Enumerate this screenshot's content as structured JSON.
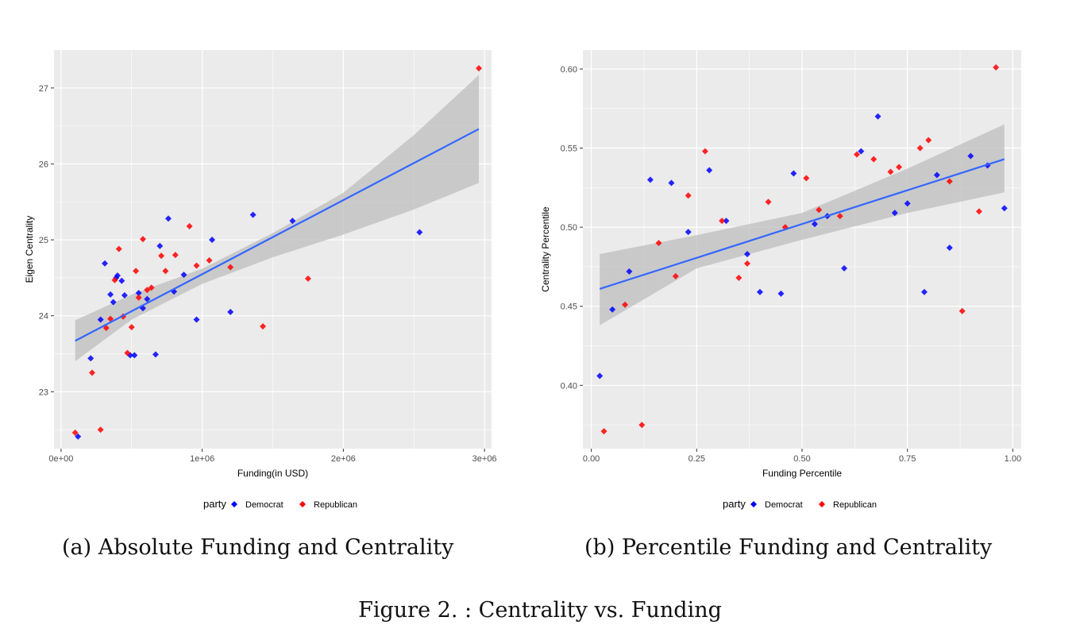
{
  "figure_caption": "Figure 2. : Centrality vs. Funding",
  "colors": {
    "panel_bg": "#ebebeb",
    "grid": "#ffffff",
    "democrat": "#0000ff",
    "republican": "#ff0000",
    "fit_line": "#3366ff",
    "ribbon": "#bdbdbd"
  },
  "chart_data": [
    {
      "id": "a",
      "type": "scatter",
      "caption": "(a) Absolute Funding and Centrality",
      "title": "",
      "xlabel": "Funding(in USD)",
      "ylabel": "Eigen Centrality",
      "xlim": [
        -50000,
        3050000
      ],
      "ylim": [
        22.25,
        27.5
      ],
      "x_ticks": [
        0,
        1000000,
        2000000,
        3000000
      ],
      "x_tick_labels": [
        "0e+00",
        "1e+06",
        "2e+06",
        "3e+06"
      ],
      "y_ticks": [
        23,
        24,
        25,
        26,
        27
      ],
      "y_tick_labels": [
        "23",
        "24",
        "25",
        "26",
        "27"
      ],
      "grid": true,
      "legend": {
        "title": "party",
        "position": "bottom",
        "entries": [
          "Democrat",
          "Republican"
        ]
      },
      "series": [
        {
          "name": "Democrat",
          "color": "#0000ff",
          "points": [
            [
              120000,
              22.41
            ],
            [
              210000,
              23.44
            ],
            [
              280000,
              23.95
            ],
            [
              310000,
              24.69
            ],
            [
              350000,
              24.28
            ],
            [
              370000,
              24.18
            ],
            [
              390000,
              24.5
            ],
            [
              400000,
              24.53
            ],
            [
              430000,
              24.46
            ],
            [
              450000,
              24.27
            ],
            [
              490000,
              23.48
            ],
            [
              520000,
              23.48
            ],
            [
              550000,
              24.3
            ],
            [
              580000,
              24.1
            ],
            [
              610000,
              24.22
            ],
            [
              670000,
              23.49
            ],
            [
              700000,
              24.92
            ],
            [
              760000,
              25.28
            ],
            [
              800000,
              24.32
            ],
            [
              870000,
              24.54
            ],
            [
              960000,
              23.95
            ],
            [
              1070000,
              25.0
            ],
            [
              1200000,
              24.05
            ],
            [
              1360000,
              25.33
            ],
            [
              1640000,
              25.25
            ],
            [
              2540000,
              25.1
            ]
          ]
        },
        {
          "name": "Republican",
          "color": "#ff0000",
          "points": [
            [
              100000,
              22.46
            ],
            [
              220000,
              23.25
            ],
            [
              280000,
              22.5
            ],
            [
              320000,
              23.84
            ],
            [
              350000,
              23.96
            ],
            [
              380000,
              24.47
            ],
            [
              410000,
              24.88
            ],
            [
              440000,
              23.99
            ],
            [
              470000,
              23.51
            ],
            [
              500000,
              23.85
            ],
            [
              530000,
              24.59
            ],
            [
              550000,
              24.24
            ],
            [
              580000,
              25.01
            ],
            [
              610000,
              24.34
            ],
            [
              640000,
              24.37
            ],
            [
              710000,
              24.79
            ],
            [
              740000,
              24.59
            ],
            [
              810000,
              24.8
            ],
            [
              910000,
              25.18
            ],
            [
              960000,
              24.66
            ],
            [
              1050000,
              24.73
            ],
            [
              1200000,
              24.64
            ],
            [
              1430000,
              23.86
            ],
            [
              1750000,
              24.49
            ],
            [
              2960000,
              27.26
            ]
          ]
        }
      ],
      "fit": {
        "x": [
          100000,
          2960000
        ],
        "y": [
          23.67,
          26.46
        ]
      },
      "ribbon": {
        "x": [
          100000,
          500000,
          1000000,
          1500000,
          2000000,
          2500000,
          2960000
        ],
        "lower": [
          23.4,
          23.95,
          24.42,
          24.77,
          25.07,
          25.4,
          25.75
        ],
        "upper": [
          23.94,
          24.28,
          24.62,
          25.09,
          25.62,
          26.38,
          27.17
        ]
      }
    },
    {
      "id": "b",
      "type": "scatter",
      "caption": "(b) Percentile Funding and Centrality",
      "title": "",
      "xlabel": "Funding Percentile",
      "ylabel": "Centrality Percentile",
      "xlim": [
        -0.02,
        1.02
      ],
      "ylim": [
        0.36,
        0.612
      ],
      "x_ticks": [
        0,
        0.25,
        0.5,
        0.75,
        1.0
      ],
      "x_tick_labels": [
        "0.00",
        "0.25",
        "0.50",
        "0.75",
        "1.00"
      ],
      "y_ticks": [
        0.4,
        0.45,
        0.5,
        0.55,
        0.6
      ],
      "y_tick_labels": [
        "0.40",
        "0.45",
        "0.50",
        "0.55",
        "0.60"
      ],
      "grid": true,
      "legend": {
        "title": "party",
        "position": "bottom",
        "entries": [
          "Democrat",
          "Republican"
        ]
      },
      "series": [
        {
          "name": "Democrat",
          "color": "#0000ff",
          "points": [
            [
              0.02,
              0.406
            ],
            [
              0.05,
              0.448
            ],
            [
              0.09,
              0.472
            ],
            [
              0.14,
              0.53
            ],
            [
              0.19,
              0.528
            ],
            [
              0.23,
              0.497
            ],
            [
              0.28,
              0.536
            ],
            [
              0.32,
              0.504
            ],
            [
              0.37,
              0.483
            ],
            [
              0.4,
              0.459
            ],
            [
              0.45,
              0.458
            ],
            [
              0.48,
              0.534
            ],
            [
              0.53,
              0.502
            ],
            [
              0.56,
              0.507
            ],
            [
              0.6,
              0.474
            ],
            [
              0.64,
              0.548
            ],
            [
              0.68,
              0.57
            ],
            [
              0.72,
              0.509
            ],
            [
              0.75,
              0.515
            ],
            [
              0.79,
              0.459
            ],
            [
              0.82,
              0.533
            ],
            [
              0.85,
              0.487
            ],
            [
              0.9,
              0.545
            ],
            [
              0.94,
              0.539
            ],
            [
              0.98,
              0.512
            ]
          ]
        },
        {
          "name": "Republican",
          "color": "#ff0000",
          "points": [
            [
              0.03,
              0.371
            ],
            [
              0.08,
              0.451
            ],
            [
              0.12,
              0.375
            ],
            [
              0.16,
              0.49
            ],
            [
              0.2,
              0.469
            ],
            [
              0.23,
              0.52
            ],
            [
              0.27,
              0.548
            ],
            [
              0.31,
              0.504
            ],
            [
              0.35,
              0.468
            ],
            [
              0.37,
              0.477
            ],
            [
              0.42,
              0.516
            ],
            [
              0.46,
              0.5
            ],
            [
              0.51,
              0.531
            ],
            [
              0.54,
              0.511
            ],
            [
              0.59,
              0.507
            ],
            [
              0.63,
              0.546
            ],
            [
              0.67,
              0.543
            ],
            [
              0.71,
              0.535
            ],
            [
              0.73,
              0.538
            ],
            [
              0.78,
              0.55
            ],
            [
              0.8,
              0.555
            ],
            [
              0.85,
              0.529
            ],
            [
              0.88,
              0.447
            ],
            [
              0.92,
              0.51
            ],
            [
              0.96,
              0.601
            ]
          ]
        }
      ],
      "fit": {
        "x": [
          0.02,
          0.98
        ],
        "y": [
          0.461,
          0.543
        ]
      },
      "ribbon": {
        "x": [
          0.02,
          0.25,
          0.5,
          0.75,
          0.98
        ],
        "lower": [
          0.438,
          0.474,
          0.492,
          0.509,
          0.522
        ],
        "upper": [
          0.483,
          0.495,
          0.509,
          0.537,
          0.565
        ]
      }
    }
  ]
}
